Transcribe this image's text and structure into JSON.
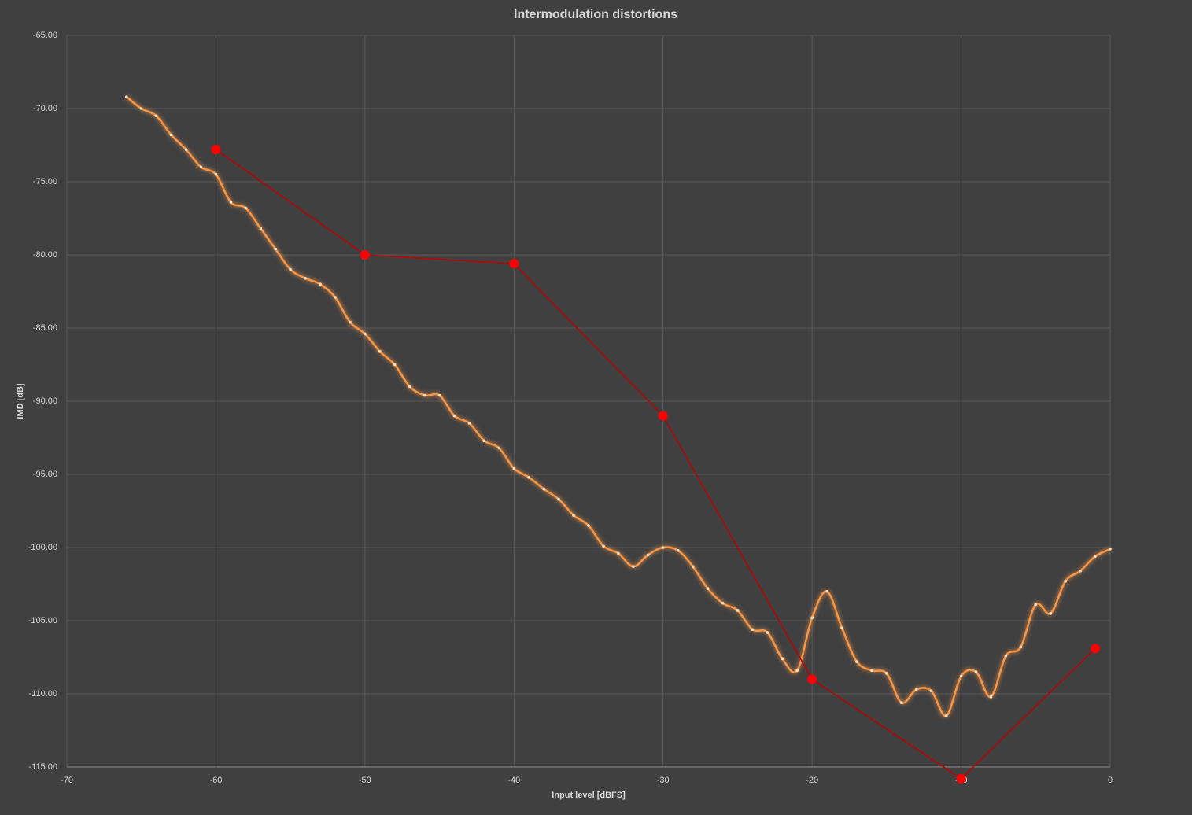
{
  "chart_data": {
    "type": "line",
    "title": "Intermodulation distortions",
    "xlabel": "Input level [dBFS]",
    "ylabel": "IMD [dB]",
    "xlim": [
      -70,
      0
    ],
    "xticks": [
      -70,
      -60,
      -50,
      -40,
      -30,
      -20,
      -10,
      0
    ],
    "ylim": [
      -115,
      -65
    ],
    "yticks": [
      {
        "value": -65,
        "label": "-65.00"
      },
      {
        "value": -70,
        "label": "-70.00"
      },
      {
        "value": -75,
        "label": "-75.00"
      },
      {
        "value": -80,
        "label": "-80.00"
      },
      {
        "value": -85,
        "label": "-85.00"
      },
      {
        "value": -90,
        "label": "-90.00"
      },
      {
        "value": -95,
        "label": "-95.00"
      },
      {
        "value": -100,
        "label": "-100.00"
      },
      {
        "value": -105,
        "label": "-105.00"
      },
      {
        "value": -110,
        "label": "-110.00"
      },
      {
        "value": -115,
        "label": "-115.00"
      }
    ],
    "grid": true,
    "series": [
      {
        "color": "#f79646",
        "smooth": true,
        "x": [
          -66,
          -65,
          -64,
          -63,
          -62,
          -61,
          -60,
          -59,
          -58,
          -57,
          -56,
          -55,
          -54,
          -53,
          -52,
          -51,
          -50,
          -49,
          -48,
          -47,
          -46,
          -45,
          -44,
          -43,
          -42,
          -41,
          -40,
          -39,
          -38,
          -37,
          -36,
          -35,
          -34,
          -33,
          -32,
          -31,
          -30,
          -29,
          -28,
          -27,
          -26,
          -25,
          -24,
          -23,
          -22,
          -21,
          -20,
          -19,
          -18,
          -17,
          -16,
          -15,
          -14,
          -13,
          -12,
          -11,
          -10,
          -9,
          -8,
          -7,
          -6,
          -5,
          -4,
          -3,
          -2,
          -1,
          0
        ],
        "values": [
          -69.2,
          -70.0,
          -70.5,
          -71.8,
          -72.8,
          -74.0,
          -74.5,
          -76.4,
          -76.8,
          -78.2,
          -79.6,
          -81.0,
          -81.6,
          -82.0,
          -82.9,
          -84.6,
          -85.4,
          -86.6,
          -87.5,
          -89.0,
          -89.6,
          -89.6,
          -91.0,
          -91.5,
          -92.7,
          -93.2,
          -94.6,
          -95.2,
          -96.0,
          -96.7,
          -97.8,
          -98.5,
          -99.9,
          -100.4,
          -101.3,
          -100.5,
          -100.0,
          -100.2,
          -101.3,
          -102.8,
          -103.8,
          -104.3,
          -105.6,
          -105.8,
          -107.6,
          -108.4,
          -104.8,
          -103.0,
          -105.5,
          -107.8,
          -108.4,
          -108.6,
          -110.6,
          -109.7,
          -109.8,
          -111.5,
          -108.8,
          -108.5,
          -110.2,
          -107.4,
          -106.8,
          -103.9,
          -104.5,
          -102.3,
          -101.6,
          -100.6,
          -100.1
        ]
      },
      {
        "color": "#ff0000",
        "line_color": "#c00000",
        "smooth": false,
        "x": [
          -60,
          -50,
          -40,
          -30,
          -20,
          -10,
          -1
        ],
        "values": [
          -72.8,
          -80.0,
          -80.6,
          -91.0,
          -109.0,
          -115.8,
          -106.9
        ]
      }
    ]
  }
}
